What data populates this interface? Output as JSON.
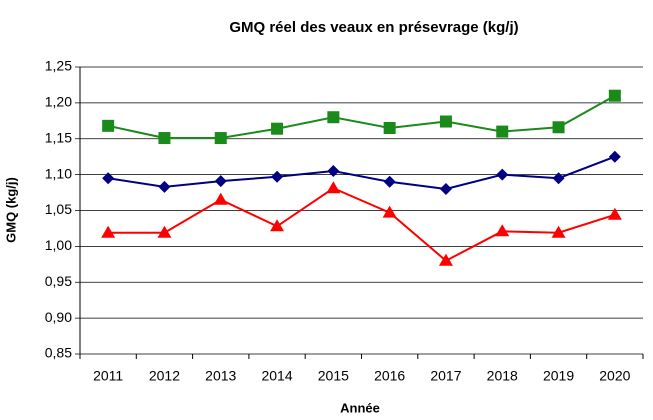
{
  "chart_data": {
    "type": "line",
    "title": "GMQ réel des veaux en présevrage (kg/j)",
    "x_label": "Année",
    "y_label": "GMQ (kg/j)",
    "categories": [
      "2011",
      "2012",
      "2013",
      "2014",
      "2015",
      "2016",
      "2017",
      "2018",
      "2019",
      "2020"
    ],
    "series": [
      {
        "color": "#1a8a1a",
        "marker": "square",
        "values": [
          1.168,
          1.151,
          1.151,
          1.164,
          1.18,
          1.165,
          1.174,
          1.16,
          1.166,
          1.21
        ]
      },
      {
        "color": "#000080",
        "marker": "diamond",
        "values": [
          1.095,
          1.083,
          1.091,
          1.097,
          1.105,
          1.09,
          1.08,
          1.1,
          1.095,
          1.125
        ]
      },
      {
        "color": "#ff0000",
        "marker": "triangle",
        "values": [
          1.019,
          1.019,
          1.065,
          1.028,
          1.081,
          1.047,
          0.98,
          1.021,
          1.019,
          1.044
        ]
      }
    ],
    "ylim": [
      0.85,
      1.25
    ],
    "yticks": [
      {
        "value": 0.85,
        "label": "0,85"
      },
      {
        "value": 0.9,
        "label": "0,90"
      },
      {
        "value": 0.95,
        "label": "0,95"
      },
      {
        "value": 1.0,
        "label": "1,00"
      },
      {
        "value": 1.05,
        "label": "1,05"
      },
      {
        "value": 1.1,
        "label": "1,10"
      },
      {
        "value": 1.15,
        "label": "1,15"
      },
      {
        "value": 1.2,
        "label": "1,20"
      },
      {
        "value": 1.25,
        "label": "1,25"
      }
    ],
    "grid": true
  }
}
